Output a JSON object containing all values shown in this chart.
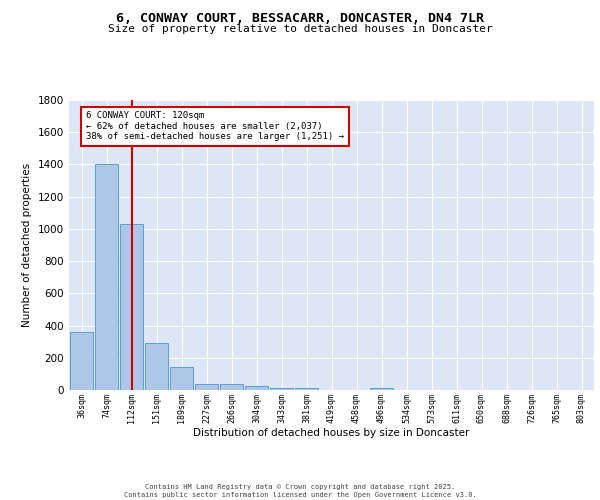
{
  "title_line1": "6, CONWAY COURT, BESSACARR, DONCASTER, DN4 7LR",
  "title_line2": "Size of property relative to detached houses in Doncaster",
  "xlabel": "Distribution of detached houses by size in Doncaster",
  "ylabel": "Number of detached properties",
  "bar_values": [
    360,
    1400,
    1030,
    290,
    140,
    40,
    35,
    25,
    15,
    10,
    0,
    0,
    15,
    0,
    0,
    0,
    0,
    0,
    0,
    0,
    0
  ],
  "categories": [
    "36sqm",
    "74sqm",
    "112sqm",
    "151sqm",
    "189sqm",
    "227sqm",
    "266sqm",
    "304sqm",
    "343sqm",
    "381sqm",
    "419sqm",
    "458sqm",
    "496sqm",
    "534sqm",
    "573sqm",
    "611sqm",
    "650sqm",
    "688sqm",
    "726sqm",
    "765sqm",
    "803sqm"
  ],
  "bar_color": "#aec6e8",
  "bar_edge_color": "#5a9fd4",
  "bg_color": "#dce6f5",
  "grid_color": "#ffffff",
  "vline_x": 2.0,
  "vline_color": "#cc0000",
  "annotation_text": "6 CONWAY COURT: 120sqm\n← 62% of detached houses are smaller (2,037)\n38% of semi-detached houses are larger (1,251) →",
  "annotation_box_color": "#ffffff",
  "annotation_box_edge": "#cc0000",
  "ylim": [
    0,
    1800
  ],
  "yticks": [
    0,
    200,
    400,
    600,
    800,
    1000,
    1200,
    1400,
    1600,
    1800
  ],
  "footer_line1": "Contains HM Land Registry data © Crown copyright and database right 2025.",
  "footer_line2": "Contains public sector information licensed under the Open Government Licence v3.0."
}
